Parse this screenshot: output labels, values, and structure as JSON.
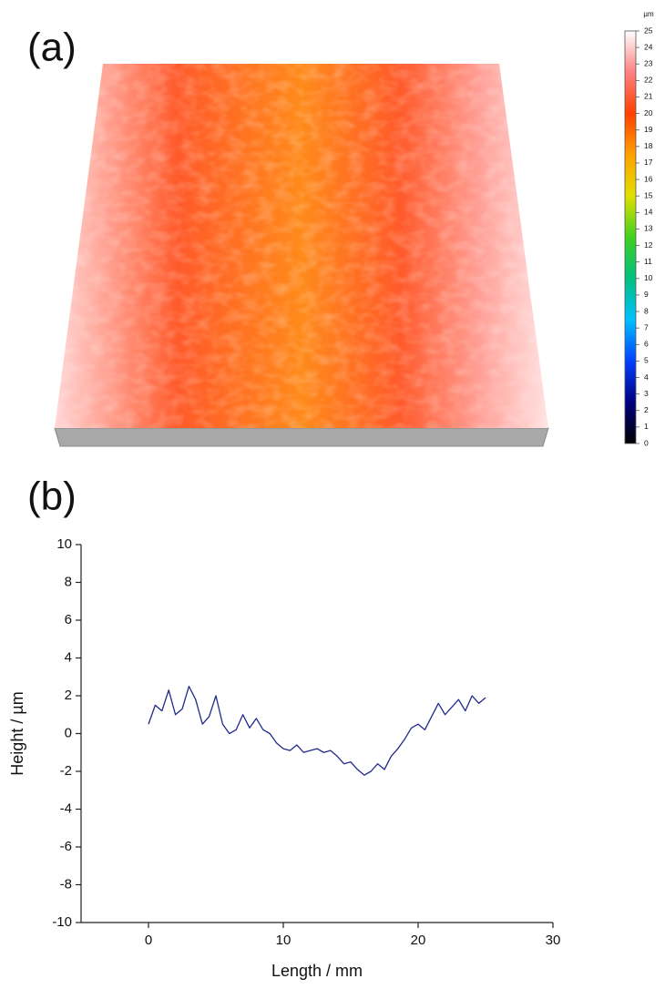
{
  "chart_data": [
    {
      "type": "surface",
      "label": "(a)",
      "clim": [
        0,
        25
      ],
      "cticks": [
        0,
        1,
        2,
        3,
        4,
        5,
        6,
        7,
        8,
        9,
        10,
        11,
        12,
        13,
        14,
        15,
        16,
        17,
        18,
        19,
        20,
        21,
        22,
        23,
        24,
        25
      ],
      "cunit": "µm",
      "colorscale": [
        "#000000",
        "#00007f",
        "#0040ff",
        "#00c0ff",
        "#00c080",
        "#40d020",
        "#e0e000",
        "#ffa000",
        "#ff4000",
        "#ff8080",
        "#ffffff"
      ]
    },
    {
      "type": "line",
      "label": "(b)",
      "xlabel": "Length / mm",
      "ylabel": "Height / µm",
      "x": [
        0,
        0.5,
        1,
        1.5,
        2,
        2.5,
        3,
        3.5,
        4,
        4.5,
        5,
        5.5,
        6,
        6.5,
        7,
        7.5,
        8,
        8.5,
        9,
        9.5,
        10,
        10.5,
        11,
        11.5,
        12,
        12.5,
        13,
        13.5,
        14,
        14.5,
        15,
        15.5,
        16,
        16.5,
        17,
        17.5,
        18,
        18.5,
        19,
        19.5,
        20,
        20.5,
        21,
        21.5,
        22,
        22.5,
        23,
        23.5,
        24,
        24.5,
        25
      ],
      "values": [
        0.5,
        1.5,
        1.2,
        2.3,
        1.0,
        1.3,
        2.5,
        1.8,
        0.5,
        0.9,
        2.0,
        0.5,
        0.0,
        0.2,
        1.0,
        0.3,
        0.8,
        0.2,
        0.0,
        -0.5,
        -0.8,
        -0.9,
        -0.6,
        -1.0,
        -0.9,
        -0.8,
        -1.0,
        -0.9,
        -1.2,
        -1.6,
        -1.5,
        -1.9,
        -2.2,
        -2.0,
        -1.6,
        -1.9,
        -1.2,
        -0.8,
        -0.3,
        0.3,
        0.5,
        0.2,
        0.9,
        1.6,
        1.0,
        1.4,
        1.8,
        1.2,
        2.0,
        1.6,
        1.9
      ],
      "color": "#1f2a8a",
      "xlim": [
        -5,
        30
      ],
      "xticks": [
        0,
        10,
        20,
        30
      ],
      "ylim": [
        -10,
        10
      ],
      "yticks": [
        -10,
        -8,
        -6,
        -4,
        -2,
        0,
        2,
        4,
        6,
        8,
        10
      ]
    }
  ]
}
